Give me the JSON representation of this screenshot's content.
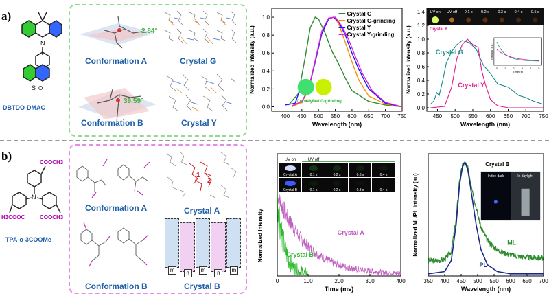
{
  "row_a": {
    "label": "a)",
    "molecule": "DBTDO-DMAC",
    "conf_a": "Conformation A",
    "conf_b": "Conformation B",
    "crystal_g": "Crystal G",
    "crystal_y": "Crystal Y",
    "angle_a": "2.84°",
    "angle_b": "39.59°",
    "colors": {
      "panel_border": "#8fdc8f",
      "label_blue": "#1f5fa8",
      "green_text": "#3cb043"
    }
  },
  "row_b": {
    "label": "b)",
    "molecule": "TPA-o-3COOMe",
    "substituents": {
      "top": "COOCH3",
      "left": "H3COOC",
      "right": "COOCH3"
    },
    "conf_a": "Conformation A",
    "conf_b": "Conformation B",
    "crystal_a": "Crystal A",
    "crystal_b": "Crystal B",
    "stack_letters": [
      "m",
      "n",
      "m",
      "n",
      "m"
    ],
    "colors": {
      "panel_border": "#e58be5",
      "label_blue": "#1f5fa8",
      "violet": "#c040c0"
    }
  },
  "chart_data": [
    {
      "id": "a-left",
      "type": "line",
      "xlabel": "Wavelength (nm)",
      "ylabel": "Normalized Intensity (a.u.)",
      "xlim": [
        360,
        750
      ],
      "ylim": [
        -0.05,
        1.1
      ],
      "xticks": [
        400,
        450,
        500,
        550,
        600,
        650,
        700,
        750
      ],
      "yticks": [
        0.0,
        0.2,
        0.4,
        0.6,
        0.8,
        1.0
      ],
      "series": [
        {
          "name": "Crystal G",
          "color": "#2e8b2e",
          "x": [
            410,
            440,
            460,
            475,
            490,
            500,
            520,
            540,
            560,
            580,
            600,
            650,
            700,
            750
          ],
          "y": [
            0.02,
            0.15,
            0.55,
            0.88,
            1.0,
            0.98,
            0.82,
            0.62,
            0.48,
            0.32,
            0.18,
            0.06,
            0.02,
            0.0
          ]
        },
        {
          "name": "Crystal G-grinding",
          "color": "#ff8c00",
          "x": [
            420,
            450,
            470,
            490,
            510,
            530,
            545,
            560,
            580,
            600,
            620,
            650,
            700,
            750
          ],
          "y": [
            0.0,
            0.05,
            0.18,
            0.5,
            0.82,
            0.98,
            1.0,
            0.93,
            0.72,
            0.5,
            0.3,
            0.12,
            0.03,
            0.0
          ]
        },
        {
          "name": "Crystal Y",
          "color": "#1a1aff",
          "x": [
            400,
            430,
            450,
            470,
            490,
            510,
            530,
            545,
            560,
            580,
            600,
            620,
            650,
            700,
            750
          ],
          "y": [
            0.02,
            0.04,
            0.25,
            0.2,
            0.5,
            0.82,
            0.98,
            1.0,
            0.95,
            0.8,
            0.6,
            0.42,
            0.2,
            0.04,
            0.0
          ]
        },
        {
          "name": "Crystal Y-grinding",
          "color": "#e020e0",
          "x": [
            420,
            450,
            470,
            490,
            510,
            530,
            550,
            570,
            590,
            610,
            630,
            660,
            700,
            750
          ],
          "y": [
            0.01,
            0.06,
            0.2,
            0.52,
            0.85,
            0.99,
            1.0,
            0.9,
            0.75,
            0.56,
            0.38,
            0.18,
            0.05,
            0.0
          ]
        }
      ],
      "annotations": [
        "Crystal G",
        "Crystal G-grinding"
      ]
    },
    {
      "id": "a-right",
      "type": "line",
      "xlabel": "Wavelength (nm)",
      "ylabel": "Normalized Intensity (a.u.)",
      "xlim": [
        420,
        750
      ],
      "ylim": [
        -0.05,
        1.45
      ],
      "xticks": [
        450,
        500,
        550,
        600,
        650,
        700,
        750
      ],
      "yticks": [
        0.0,
        0.2,
        0.4,
        0.6,
        0.8,
        1.0,
        1.2,
        1.4
      ],
      "series": [
        {
          "name": "Crystal G",
          "color": "#138a8a",
          "x": [
            430,
            440,
            448,
            455,
            465,
            475,
            490,
            505,
            520,
            540,
            560,
            580,
            600,
            620,
            650,
            680,
            700,
            720,
            750
          ],
          "y": [
            0.05,
            0.1,
            0.22,
            0.18,
            0.4,
            0.65,
            0.82,
            0.92,
            0.98,
            0.95,
            0.85,
            0.62,
            0.5,
            0.35,
            0.3,
            0.18,
            0.15,
            0.1,
            0.05
          ]
        },
        {
          "name": "Crystal Y",
          "color": "#e0168c",
          "x": [
            430,
            470,
            490,
            505,
            520,
            535,
            550,
            565,
            575,
            585,
            600,
            620,
            650,
            750
          ],
          "y": [
            0.0,
            0.02,
            0.3,
            0.72,
            0.92,
            1.0,
            0.92,
            0.88,
            0.55,
            0.35,
            0.12,
            0.03,
            0.0,
            0.0
          ]
        }
      ],
      "inset": {
        "xlabel": "Time (s)",
        "ylabel": "Intensity (a.u.)",
        "xticks": [
          "0",
          "1",
          "2",
          "3",
          "4",
          "5"
        ]
      },
      "photo_strip": {
        "labels": [
          "UV on",
          "UV off",
          "0.1 s",
          "0.2 s",
          "0.3 s",
          "0.4 s",
          "0.5 s"
        ],
        "sample": "Crystal Y"
      }
    },
    {
      "id": "b-left",
      "type": "line",
      "xlabel": "Time (ms)",
      "ylabel": "Normalized Intensity",
      "xlim": [
        0,
        400
      ],
      "xticks": [
        0,
        100,
        200,
        300,
        400
      ],
      "series": [
        {
          "name": "Crystal A",
          "color": "#c060c0",
          "tau_ms": 95,
          "duration_ms": 400
        },
        {
          "name": "Crystal B",
          "color": "#2db82d",
          "tau_ms": 22,
          "duration_ms": 100
        }
      ],
      "photo_grid": {
        "header": [
          "UV on",
          "UV off"
        ],
        "row_a": [
          "Crystal A",
          "0.1 s",
          "0.2 s",
          "0.3 s",
          "0.4 s"
        ],
        "row_b": [
          "Crystal B",
          "0.1 s",
          "0.2 s",
          "0.3 s",
          "0.4 s"
        ]
      }
    },
    {
      "id": "b-right",
      "type": "line",
      "title": "Crystal B",
      "xlabel": "Wavelength (nm)",
      "ylabel": "Normalized ML/PL intensity (au)",
      "xlim": [
        350,
        700
      ],
      "xticks": [
        350,
        400,
        450,
        500,
        550,
        600,
        650,
        700
      ],
      "series": [
        {
          "name": "PL",
          "color": "#1a2a8a",
          "x": [
            350,
            400,
            420,
            435,
            445,
            455,
            462,
            470,
            480,
            495,
            510,
            530,
            560,
            600,
            650,
            700
          ],
          "y": [
            0.0,
            0.02,
            0.12,
            0.45,
            0.8,
            0.98,
            1.0,
            0.94,
            0.75,
            0.45,
            0.22,
            0.08,
            0.02,
            0.0,
            0.0,
            0.0
          ]
        },
        {
          "name": "ML",
          "color": "#2e8b2e",
          "x": [
            350,
            380,
            400,
            420,
            435,
            445,
            455,
            462,
            470,
            480,
            495,
            510,
            530,
            550,
            570,
            590,
            620,
            650,
            700
          ],
          "y": [
            0.12,
            0.12,
            0.13,
            0.2,
            0.5,
            0.85,
            0.98,
            1.0,
            0.95,
            0.82,
            0.6,
            0.42,
            0.3,
            0.24,
            0.2,
            0.18,
            0.16,
            0.15,
            0.14
          ]
        }
      ],
      "inset_labels": [
        "In the dark",
        "In daylight"
      ]
    }
  ]
}
